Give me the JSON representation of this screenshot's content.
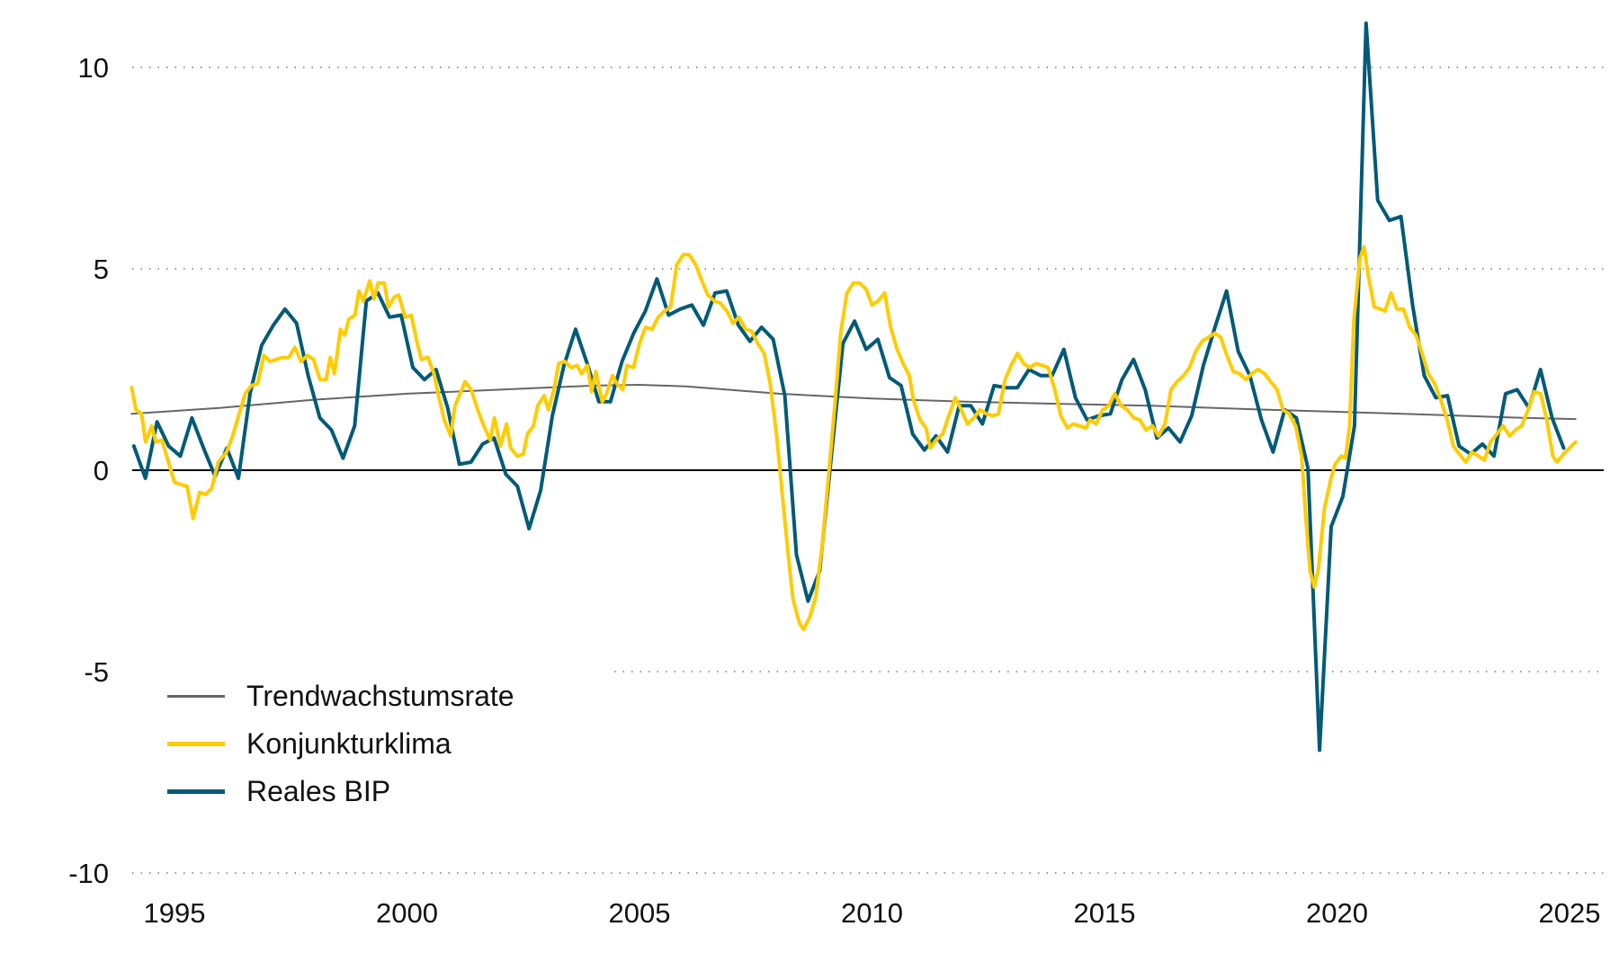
{
  "chart_data": {
    "type": "line",
    "title": "",
    "xlabel": "",
    "ylabel": "",
    "xlim": [
      1994,
      2025.5
    ],
    "ylim": [
      -10,
      11.5
    ],
    "x_ticks": [
      "1995",
      "2000",
      "2005",
      "2010",
      "2015",
      "2020",
      "2025"
    ],
    "y_ticks": [
      "10",
      "5",
      "0",
      "-5",
      "-10"
    ],
    "grid": "horizontal dotted",
    "zero_line": true,
    "legend_position": "bottom-left",
    "legend": [
      "Trendwachstumsrate",
      "Konjunkturklima",
      "Reales BIP"
    ],
    "series": [
      {
        "name": "Trendwachstumsrate",
        "color": "#666666",
        "x": [
          1994.08,
          1996,
          1998,
          2000,
          2002,
          2004,
          2005,
          2006,
          2008,
          2010,
          2012,
          2014,
          2016,
          2018,
          2020,
          2022,
          2024,
          2025.13
        ],
        "values": [
          1.4,
          1.55,
          1.75,
          1.9,
          2.0,
          2.1,
          2.12,
          2.08,
          1.9,
          1.78,
          1.7,
          1.65,
          1.6,
          1.52,
          1.45,
          1.38,
          1.3,
          1.27
        ]
      },
      {
        "name": "Konjunkturklima",
        "color": "#FFCC00",
        "x": [
          1994.08,
          1994.17,
          1994.29,
          1994.38,
          1994.51,
          1994.6,
          1994.73,
          1994.87,
          1995.0,
          1995.13,
          1995.27,
          1995.4,
          1995.54,
          1995.67,
          1995.8,
          1995.94,
          1996.12,
          1996.25,
          1996.38,
          1996.52,
          1996.65,
          1996.79,
          1996.92,
          1997.05,
          1997.19,
          1997.32,
          1997.46,
          1997.59,
          1997.72,
          1997.86,
          1997.99,
          1998.13,
          1998.26,
          1998.35,
          1998.44,
          1998.57,
          1998.66,
          1998.75,
          1998.88,
          1998.97,
          1999.06,
          1999.2,
          1999.29,
          1999.38,
          1999.51,
          1999.6,
          1999.73,
          1999.82,
          1999.96,
          2000.09,
          2000.22,
          2000.31,
          2000.45,
          2000.58,
          2000.67,
          2000.8,
          2000.94,
          2001.03,
          2001.16,
          2001.25,
          2001.38,
          2001.52,
          2001.65,
          2001.79,
          2001.88,
          2002.01,
          2002.14,
          2002.23,
          2002.37,
          2002.5,
          2002.59,
          2002.72,
          2002.81,
          2002.95,
          2003.04,
          2003.17,
          2003.26,
          2003.39,
          2003.53,
          2003.66,
          2003.75,
          2003.88,
          2003.97,
          2004.06,
          2004.2,
          2004.29,
          2004.42,
          2004.51,
          2004.64,
          2004.73,
          2004.87,
          2005.0,
          2005.13,
          2005.27,
          2005.4,
          2005.54,
          2005.67,
          2005.8,
          2005.94,
          2006.07,
          2006.21,
          2006.34,
          2006.47,
          2006.61,
          2006.74,
          2006.88,
          2007.01,
          2007.14,
          2007.28,
          2007.41,
          2007.54,
          2007.68,
          2007.81,
          2007.95,
          2008.08,
          2008.21,
          2008.3,
          2008.44,
          2008.53,
          2008.66,
          2008.79,
          2008.93,
          2009.06,
          2009.2,
          2009.33,
          2009.46,
          2009.6,
          2009.73,
          2009.87,
          2010.0,
          2010.13,
          2010.27,
          2010.4,
          2010.54,
          2010.67,
          2010.8,
          2010.89,
          2011.03,
          2011.16,
          2011.25,
          2011.38,
          2011.52,
          2011.65,
          2011.79,
          2011.92,
          2012.05,
          2012.19,
          2012.32,
          2012.46,
          2012.59,
          2012.72,
          2012.86,
          2012.99,
          2013.13,
          2013.26,
          2013.39,
          2013.53,
          2013.66,
          2013.79,
          2013.93,
          2014.06,
          2014.2,
          2014.33,
          2014.46,
          2014.6,
          2014.69,
          2014.82,
          2014.96,
          2015.09,
          2015.22,
          2015.36,
          2015.49,
          2015.63,
          2015.76,
          2015.89,
          2016.03,
          2016.16,
          2016.3,
          2016.43,
          2016.56,
          2016.7,
          2016.83,
          2016.96,
          2017.1,
          2017.23,
          2017.37,
          2017.5,
          2017.63,
          2017.77,
          2017.9,
          2018.04,
          2018.17,
          2018.3,
          2018.44,
          2018.57,
          2018.71,
          2018.84,
          2018.97,
          2019.11,
          2019.24,
          2019.33,
          2019.42,
          2019.51,
          2019.6,
          2019.73,
          2019.87,
          2019.96,
          2020.09,
          2020.18,
          2020.27,
          2020.36,
          2020.49,
          2020.58,
          2020.67,
          2020.8,
          2020.94,
          2021.03,
          2021.16,
          2021.29,
          2021.43,
          2021.56,
          2021.7,
          2021.83,
          2021.96,
          2022.1,
          2022.23,
          2022.37,
          2022.5,
          2022.63,
          2022.77,
          2022.9,
          2023.04,
          2023.17,
          2023.3,
          2023.44,
          2023.57,
          2023.71,
          2023.84,
          2023.97,
          2024.11,
          2024.24,
          2024.38,
          2024.51,
          2024.64,
          2024.73,
          2024.87,
          2025.0,
          2025.13
        ],
        "values": [
          2.05,
          1.5,
          1.4,
          0.7,
          1.1,
          0.7,
          0.75,
          0.2,
          -0.3,
          -0.35,
          -0.4,
          -1.2,
          -0.55,
          -0.6,
          -0.45,
          0.2,
          0.45,
          0.85,
          1.35,
          1.9,
          2.1,
          2.15,
          2.85,
          2.7,
          2.75,
          2.8,
          2.8,
          3.05,
          2.7,
          2.85,
          2.75,
          2.25,
          2.25,
          2.8,
          2.4,
          3.5,
          3.35,
          3.75,
          3.85,
          4.45,
          4.2,
          4.7,
          4.25,
          4.65,
          4.65,
          4.05,
          4.3,
          4.35,
          3.8,
          3.85,
          3.15,
          2.75,
          2.8,
          2.4,
          1.9,
          1.25,
          0.85,
          1.6,
          1.95,
          2.2,
          2.0,
          1.5,
          1.1,
          0.75,
          1.3,
          0.6,
          1.15,
          0.55,
          0.35,
          0.4,
          0.9,
          1.1,
          1.6,
          1.85,
          1.5,
          2.05,
          2.65,
          2.7,
          2.55,
          2.6,
          2.4,
          2.6,
          1.95,
          2.45,
          1.7,
          1.9,
          2.35,
          2.15,
          2.0,
          2.6,
          2.55,
          3.15,
          3.55,
          3.5,
          3.8,
          3.95,
          4.05,
          5.1,
          5.35,
          5.35,
          5.1,
          4.7,
          4.35,
          4.2,
          4.15,
          3.95,
          3.65,
          3.8,
          3.5,
          3.45,
          3.15,
          2.9,
          2.15,
          0.85,
          -0.7,
          -2.25,
          -3.2,
          -3.8,
          -3.95,
          -3.65,
          -3.15,
          -1.85,
          -0.2,
          1.6,
          3.45,
          4.4,
          4.65,
          4.65,
          4.5,
          4.1,
          4.2,
          4.4,
          3.55,
          3.0,
          2.65,
          2.35,
          1.75,
          1.25,
          1.05,
          0.55,
          0.75,
          0.9,
          1.35,
          1.8,
          1.5,
          1.15,
          1.3,
          1.5,
          1.4,
          1.35,
          1.4,
          2.25,
          2.6,
          2.9,
          2.65,
          2.55,
          2.65,
          2.6,
          2.55,
          2.0,
          1.35,
          1.05,
          1.15,
          1.1,
          1.05,
          1.25,
          1.15,
          1.5,
          1.6,
          1.9,
          1.6,
          1.5,
          1.3,
          1.25,
          1.0,
          1.1,
          0.85,
          1.15,
          2.0,
          2.2,
          2.35,
          2.55,
          2.95,
          3.2,
          3.3,
          3.4,
          3.3,
          2.85,
          2.45,
          2.4,
          2.25,
          2.4,
          2.5,
          2.4,
          2.2,
          2.0,
          1.5,
          1.4,
          1.1,
          0.35,
          -1.2,
          -2.5,
          -2.9,
          -2.45,
          -0.95,
          -0.2,
          0.15,
          0.35,
          0.3,
          1.1,
          3.7,
          5.25,
          5.55,
          4.85,
          4.05,
          4.0,
          3.95,
          4.4,
          4.0,
          4.0,
          3.55,
          3.35,
          2.9,
          2.4,
          2.15,
          1.75,
          1.25,
          0.6,
          0.4,
          0.2,
          0.45,
          0.35,
          0.25,
          0.7,
          0.9,
          1.1,
          0.85,
          1.0,
          1.1,
          1.5,
          1.95,
          1.9,
          1.25,
          0.35,
          0.2,
          0.4,
          0.55,
          0.7
        ]
      },
      {
        "name": "Reales BIP",
        "color": "#005A78",
        "first_quarter": "1994Q1",
        "last_quarter": "2024Q4",
        "values": [
          0.6,
          -0.2,
          1.2,
          0.6,
          0.35,
          1.3,
          0.55,
          -0.15,
          0.55,
          -0.2,
          1.9,
          3.1,
          3.6,
          4.0,
          3.65,
          2.35,
          1.3,
          1.0,
          0.3,
          1.1,
          4.2,
          4.4,
          3.8,
          3.85,
          2.55,
          2.25,
          2.5,
          1.55,
          0.15,
          0.2,
          0.65,
          0.8,
          -0.1,
          -0.4,
          -1.45,
          -0.5,
          1.35,
          2.6,
          3.5,
          2.65,
          1.7,
          1.7,
          2.7,
          3.4,
          3.95,
          4.75,
          3.85,
          4.0,
          4.1,
          3.6,
          4.4,
          4.45,
          3.6,
          3.2,
          3.55,
          3.25,
          1.85,
          -2.1,
          -3.25,
          -2.5,
          0.35,
          3.15,
          3.7,
          3.0,
          3.25,
          2.3,
          2.1,
          0.9,
          0.5,
          0.85,
          0.45,
          1.6,
          1.6,
          1.15,
          2.1,
          2.05,
          2.05,
          2.5,
          2.35,
          2.35,
          3.0,
          1.8,
          1.25,
          1.35,
          1.4,
          2.25,
          2.75,
          2.0,
          0.8,
          1.05,
          0.7,
          1.35,
          2.6,
          3.55,
          4.45,
          2.95,
          2.35,
          1.25,
          0.45,
          1.5,
          1.3,
          0.05,
          -6.95,
          -1.4,
          -0.65,
          1.1,
          11.1,
          6.7,
          6.2,
          6.3,
          4.1,
          2.35,
          1.8,
          1.85,
          0.6,
          0.4,
          0.65,
          0.35,
          1.9,
          2.0,
          1.55,
          2.5,
          1.3,
          0.55
        ]
      }
    ]
  }
}
